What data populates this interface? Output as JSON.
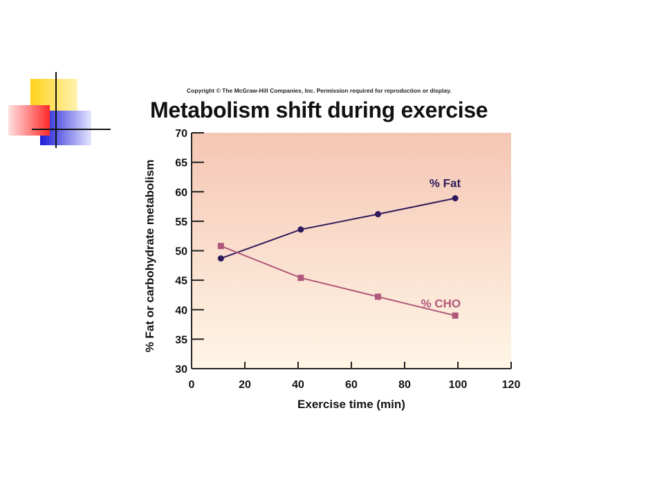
{
  "copyright": "Copyright © The McGraw-Hill Companies, Inc. Permission required for reproduction or display.",
  "chart_data": {
    "type": "line",
    "title": "Metabolism shift during exercise",
    "xlabel": "Exercise time (min)",
    "ylabel": "% Fat or carbohydrate metabolism",
    "xlim": [
      0,
      120
    ],
    "ylim": [
      30,
      70
    ],
    "x_ticks": [
      "0",
      "20",
      "40",
      "60",
      "80",
      "100",
      "120"
    ],
    "y_ticks": [
      "30",
      "35",
      "40",
      "45",
      "50",
      "55",
      "60",
      "65",
      "70"
    ],
    "grid": false,
    "series": [
      {
        "name": "% Fat",
        "color": "#2e1a5a",
        "marker": "circle",
        "x": [
          11,
          41,
          70,
          99
        ],
        "y": [
          48.7,
          53.6,
          56.2,
          58.9
        ]
      },
      {
        "name": "% CHO",
        "color": "#b0587a",
        "marker": "square",
        "x": [
          11,
          41,
          70,
          99
        ],
        "y": [
          50.8,
          45.4,
          42.2,
          39.0
        ]
      }
    ]
  },
  "colors": {
    "background_top": "#f5c6b4",
    "background_bottom": "#fff6e6"
  }
}
